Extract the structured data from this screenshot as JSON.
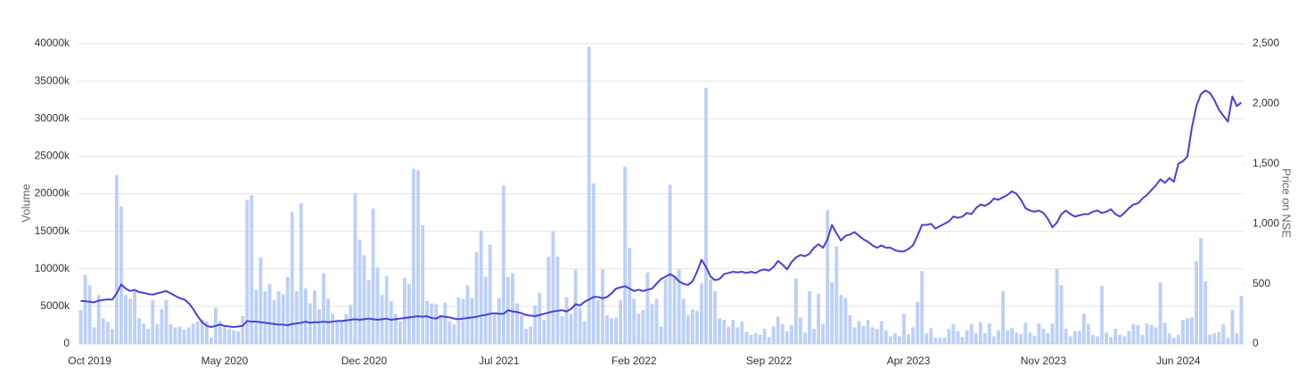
{
  "chart_data": {
    "type": "bar-line",
    "y_label": "Volume",
    "y2_label": "Price on NSE",
    "categories": [
      null,
      null,
      "Oct 2019",
      null,
      null,
      null,
      null,
      null,
      null,
      null,
      null,
      null,
      null,
      null,
      null,
      null,
      null,
      null,
      null,
      null,
      null,
      null,
      null,
      null,
      null,
      null,
      null,
      null,
      null,
      null,
      null,
      null,
      "May 2020",
      null,
      null,
      null,
      null,
      null,
      null,
      null,
      null,
      null,
      null,
      null,
      null,
      null,
      null,
      null,
      null,
      null,
      null,
      null,
      null,
      null,
      null,
      null,
      null,
      null,
      null,
      null,
      null,
      null,
      null,
      "Dec 2020",
      null,
      null,
      null,
      null,
      null,
      null,
      null,
      null,
      null,
      null,
      null,
      null,
      null,
      null,
      null,
      null,
      null,
      null,
      null,
      null,
      null,
      null,
      null,
      null,
      null,
      null,
      null,
      null,
      null,
      "Jul 2021",
      null,
      null,
      null,
      null,
      null,
      null,
      null,
      null,
      null,
      null,
      null,
      null,
      null,
      null,
      null,
      null,
      null,
      null,
      null,
      null,
      null,
      null,
      null,
      null,
      null,
      null,
      null,
      null,
      null,
      "Feb 2022",
      null,
      null,
      null,
      null,
      null,
      null,
      null,
      null,
      null,
      null,
      null,
      null,
      null,
      null,
      null,
      null,
      null,
      null,
      null,
      null,
      null,
      null,
      null,
      null,
      null,
      null,
      null,
      null,
      null,
      "Sep 2022",
      null,
      null,
      null,
      null,
      null,
      null,
      null,
      null,
      null,
      null,
      null,
      null,
      null,
      null,
      null,
      null,
      null,
      null,
      null,
      null,
      null,
      null,
      null,
      null,
      null,
      null,
      null,
      null,
      null,
      null,
      "Apr 2023",
      null,
      null,
      null,
      null,
      null,
      null,
      null,
      null,
      null,
      null,
      null,
      null,
      null,
      null,
      null,
      null,
      null,
      null,
      null,
      null,
      null,
      null,
      null,
      null,
      null,
      null,
      null,
      null,
      null,
      "Nov 2023",
      null,
      null,
      null,
      null,
      null,
      null,
      null,
      null,
      null,
      null,
      null,
      null,
      null,
      null,
      null,
      null,
      null,
      null,
      null,
      null,
      null,
      null,
      null,
      null,
      null,
      null,
      null,
      null,
      null,
      "Jun 2024",
      null,
      null,
      null,
      null,
      null,
      null,
      null,
      null,
      null,
      null,
      null,
      null,
      null,
      null
    ],
    "series": [
      {
        "name": "Volume",
        "type": "bar",
        "color": "#bcd0f7",
        "axis": "y",
        "values": [
          4500,
          9200,
          7800,
          2200,
          6500,
          3400,
          2900,
          2000,
          22500,
          18300,
          6500,
          6000,
          7200,
          3400,
          2700,
          2000,
          5800,
          2600,
          4600,
          5800,
          2600,
          2200,
          2300,
          1900,
          2200,
          2700,
          3000,
          3200,
          3000,
          800,
          4800,
          3000,
          2500,
          2000,
          1800,
          1700,
          3700,
          19200,
          19800,
          7200,
          11500,
          7000,
          8000,
          5800,
          7000,
          6600,
          8900,
          17600,
          7000,
          18700,
          7400,
          5400,
          7100,
          4600,
          9400,
          6000,
          4000,
          3000,
          3200,
          4000,
          5200,
          20100,
          13900,
          11800,
          8500,
          18000,
          10200,
          6500,
          9000,
          5700,
          4000,
          3000,
          8800,
          8000,
          23300,
          23100,
          15800,
          5700,
          5400,
          5300,
          3800,
          5500,
          3000,
          2600,
          6200,
          6000,
          7800,
          6100,
          12200,
          15100,
          8900,
          13200,
          4000,
          6100,
          21100,
          8900,
          9400,
          5400,
          3800,
          2000,
          2300,
          5100,
          6800,
          3200,
          11600,
          15000,
          11600,
          3700,
          6200,
          4000,
          9900,
          4800,
          3000,
          39600,
          21400,
          5800,
          9900,
          3800,
          3400,
          3500,
          5800,
          23600,
          12800,
          6000,
          4000,
          4500,
          9500,
          5300,
          6000,
          2300,
          8600,
          21200,
          9000,
          9900,
          6000,
          3800,
          4600,
          4400,
          8100,
          34100,
          8600,
          7000,
          3400,
          3200,
          2300,
          3200,
          2200,
          3000,
          1600,
          1200,
          1400,
          1200,
          2000,
          900,
          2300,
          3600,
          2600,
          1700,
          2500,
          8700,
          3500,
          1500,
          7000,
          2000,
          6700,
          2600,
          17800,
          8200,
          13000,
          6500,
          6100,
          3800,
          2200,
          3000,
          2400,
          3200,
          2200,
          2000,
          3000,
          1800,
          1000,
          1400,
          1000,
          4000,
          1300,
          2200,
          5600,
          9700,
          1400,
          2100,
          800,
          800,
          800,
          2000,
          2600,
          1700,
          900,
          1800,
          2600,
          1400,
          2900,
          1400,
          2700,
          1000,
          1800,
          7000,
          1800,
          2100,
          1500,
          1300,
          2800,
          1500,
          1100,
          2700,
          2000,
          1400,
          2700,
          10000,
          7800,
          2000,
          1000,
          1700,
          1700,
          4000,
          2600,
          1200,
          1000,
          7700,
          1500,
          900,
          2000,
          1200,
          1000,
          1700,
          2600,
          2500,
          1200,
          2700,
          2500,
          2200,
          8200,
          2800,
          1400,
          800,
          1200,
          3200,
          3400,
          3500,
          11000,
          14100,
          8300,
          1200,
          1400,
          1600,
          2600,
          800,
          4500,
          1400,
          6400
        ]
      },
      {
        "name": "Price on NSE",
        "type": "line",
        "color": "#4a3fd8",
        "axis": "y2",
        "values": [
          357,
          355,
          350,
          345,
          360,
          365,
          370,
          368,
          420,
          495,
          460,
          440,
          450,
          430,
          425,
          415,
          410,
          420,
          430,
          440,
          420,
          400,
          380,
          370,
          340,
          290,
          230,
          180,
          150,
          140,
          150,
          160,
          150,
          145,
          140,
          145,
          150,
          190,
          185,
          185,
          180,
          175,
          170,
          165,
          160,
          160,
          155,
          165,
          170,
          175,
          185,
          175,
          180,
          180,
          185,
          180,
          185,
          190,
          190,
          195,
          200,
          205,
          200,
          205,
          210,
          205,
          200,
          205,
          210,
          200,
          205,
          210,
          215,
          220,
          225,
          230,
          225,
          230,
          215,
          210,
          230,
          225,
          220,
          210,
          205,
          210,
          215,
          220,
          225,
          235,
          240,
          250,
          255,
          250,
          250,
          280,
          270,
          265,
          255,
          240,
          235,
          230,
          240,
          250,
          260,
          270,
          275,
          280,
          270,
          290,
          330,
          320,
          350,
          370,
          390,
          390,
          380,
          390,
          420,
          460,
          470,
          480,
          460,
          440,
          450,
          440,
          450,
          460,
          500,
          540,
          560,
          580,
          560,
          520,
          500,
          490,
          520,
          600,
          700,
          640,
          560,
          530,
          540,
          580,
          590,
          600,
          595,
          600,
          590,
          600,
          590,
          610,
          620,
          610,
          640,
          690,
          660,
          620,
          680,
          720,
          740,
          730,
          750,
          800,
          830,
          800,
          870,
          990,
          920,
          860,
          900,
          910,
          930,
          900,
          870,
          850,
          820,
          800,
          820,
          800,
          800,
          780,
          770,
          770,
          790,
          820,
          900,
          990,
          990,
          1000,
          960,
          980,
          1000,
          1020,
          1060,
          1050,
          1060,
          1090,
          1080,
          1130,
          1160,
          1150,
          1170,
          1210,
          1200,
          1220,
          1240,
          1270,
          1250,
          1200,
          1130,
          1110,
          1100,
          1110,
          1090,
          1040,
          970,
          1010,
          1080,
          1110,
          1080,
          1060,
          1070,
          1080,
          1080,
          1100,
          1110,
          1090,
          1100,
          1120,
          1080,
          1060,
          1090,
          1130,
          1160,
          1170,
          1210,
          1240,
          1280,
          1320,
          1370,
          1340,
          1380,
          1350,
          1500,
          1520,
          1560,
          1800,
          1980,
          2080,
          2110,
          2090,
          2030,
          1950,
          1900,
          1850,
          2060,
          1980,
          2010
        ]
      }
    ],
    "ylim": [
      0,
      40000
    ],
    "yticks": [
      0,
      {
        "value": 5000,
        "label": "5000k"
      },
      {
        "value": 10000,
        "label": "10000k"
      },
      {
        "value": 15000,
        "label": "15000k"
      },
      {
        "value": 20000,
        "label": "20000k"
      },
      {
        "value": 25000,
        "label": "25000k"
      },
      {
        "value": 30000,
        "label": "30000k"
      },
      {
        "value": 35000,
        "label": "35000k"
      },
      {
        "value": 40000,
        "label": "40000k"
      }
    ],
    "y2lim": [
      0,
      2500
    ],
    "y2ticks": [
      0,
      500,
      {
        "value": 1000,
        "label": "1,000"
      },
      {
        "value": 1500,
        "label": "1,500"
      },
      {
        "value": 2000,
        "label": "2,000"
      },
      {
        "value": 2500,
        "label": "2,500"
      }
    ],
    "grid": true
  }
}
